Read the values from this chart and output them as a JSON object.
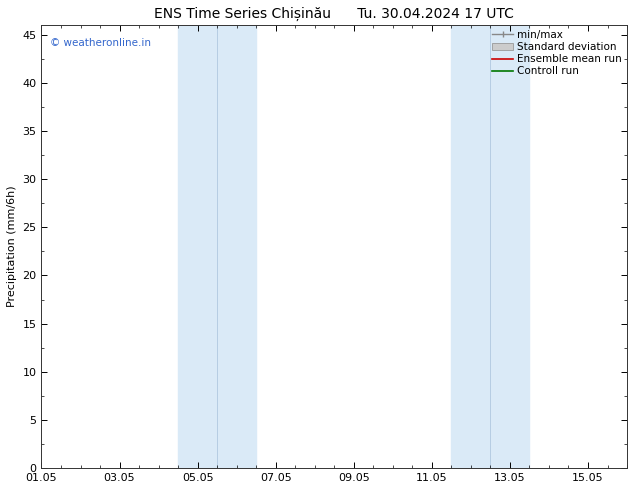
{
  "title": "ENS Time Series Chișinău      Tu. 30.04.2024 17 UTC",
  "ylabel": "Precipitation (mm/6h)",
  "ylim": [
    0,
    46
  ],
  "yticks": [
    0,
    5,
    10,
    15,
    20,
    25,
    30,
    35,
    40,
    45
  ],
  "xlim": [
    0,
    15
  ],
  "xtick_labels": [
    "01.05",
    "03.05",
    "05.05",
    "07.05",
    "09.05",
    "11.05",
    "13.05",
    "15.05"
  ],
  "xtick_positions": [
    0,
    2,
    4,
    6,
    8,
    10,
    12,
    14
  ],
  "shaded_bands": [
    {
      "x_start": 3.5,
      "x_end": 4.5,
      "color": "#daeaf7",
      "line_x": 4.5
    },
    {
      "x_start": 4.5,
      "x_end": 5.5,
      "color": "#daeaf7"
    },
    {
      "x_start": 10.5,
      "x_end": 11.5,
      "color": "#daeaf7",
      "line_x": 11.5
    },
    {
      "x_start": 11.5,
      "x_end": 12.5,
      "color": "#daeaf7"
    }
  ],
  "legend_labels": [
    "min/max",
    "Standard deviation",
    "Ensemble mean run",
    "Controll run"
  ],
  "legend_colors": [
    "#888888",
    "#bbbbbb",
    "#cc0000",
    "#007700"
  ],
  "watermark": "© weatheronline.in",
  "watermark_color": "#3366cc",
  "bg_color": "#ffffff",
  "title_fontsize": 10,
  "ylabel_fontsize": 8,
  "tick_fontsize": 8,
  "legend_fontsize": 7.5
}
